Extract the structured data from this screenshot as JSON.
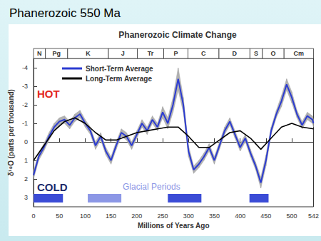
{
  "slide_title": "Phanerozoic 550 Ma",
  "chart_data": {
    "type": "line",
    "title": "Phanerozoic Climate Change",
    "x_label": "Millions of Years Ago",
    "y_label": "δ¹⁸O (parts per thousand)",
    "xlim": [
      0,
      542
    ],
    "xticks": [
      0,
      50,
      100,
      150,
      200,
      250,
      300,
      350,
      400,
      450,
      500,
      542
    ],
    "ylim": [
      3.5,
      -4.5
    ],
    "yticks": [
      -4,
      -3,
      -2,
      -1,
      0,
      1,
      2,
      3
    ],
    "grid": false,
    "legend": "upper left",
    "series": [
      {
        "name": "Short-Term Average",
        "color": "#2b3bd1",
        "x": [
          0,
          10,
          20,
          30,
          40,
          50,
          60,
          70,
          80,
          90,
          100,
          110,
          120,
          130,
          140,
          150,
          160,
          170,
          180,
          190,
          200,
          210,
          220,
          230,
          240,
          250,
          260,
          270,
          280,
          290,
          300,
          310,
          320,
          330,
          340,
          350,
          360,
          370,
          380,
          390,
          400,
          410,
          420,
          430,
          440,
          450,
          460,
          470,
          480,
          490,
          500,
          510,
          520,
          530,
          540,
          542
        ],
        "values": [
          1.8,
          0.8,
          0.3,
          -0.3,
          -0.8,
          -1.1,
          -1.2,
          -0.9,
          -1.3,
          -1.5,
          -1.0,
          -0.6,
          0.2,
          -0.3,
          0.5,
          1.0,
          0.2,
          -0.5,
          -0.3,
          0.2,
          -0.4,
          -1.0,
          -0.6,
          -1.2,
          -0.8,
          -1.6,
          -1.0,
          -2.0,
          -3.4,
          -2.0,
          0.5,
          1.5,
          1.2,
          0.8,
          0.3,
          1.0,
          0.2,
          -0.6,
          -1.1,
          -0.4,
          0.3,
          -0.2,
          0.6,
          1.3,
          2.2,
          1.0,
          -0.6,
          -1.5,
          -2.2,
          -3.1,
          -2.4,
          -1.5,
          -0.9,
          -1.4,
          -1.2,
          -1.0
        ],
        "error": [
          0.2,
          0.2,
          0.2,
          0.2,
          0.2,
          0.2,
          0.2,
          0.2,
          0.2,
          0.2,
          0.2,
          0.2,
          0.2,
          0.2,
          0.2,
          0.2,
          0.2,
          0.2,
          0.2,
          0.2,
          0.2,
          0.2,
          0.2,
          0.2,
          0.2,
          0.3,
          0.3,
          0.4,
          0.6,
          0.4,
          0.3,
          0.2,
          0.2,
          0.2,
          0.2,
          0.2,
          0.2,
          0.2,
          0.2,
          0.2,
          0.2,
          0.2,
          0.2,
          0.2,
          0.3,
          0.3,
          0.2,
          0.2,
          0.3,
          0.3,
          0.3,
          0.2,
          0.2,
          0.2,
          0.2,
          0.2
        ]
      },
      {
        "name": "Long-Term Average",
        "color": "#000000",
        "x": [
          0,
          20,
          40,
          60,
          80,
          100,
          120,
          140,
          160,
          180,
          200,
          220,
          240,
          260,
          280,
          300,
          320,
          340,
          360,
          380,
          400,
          420,
          440,
          460,
          480,
          500,
          520,
          542
        ],
        "values": [
          1.0,
          0.2,
          -0.6,
          -1.1,
          -1.3,
          -1.0,
          -0.5,
          -0.1,
          -0.1,
          -0.3,
          -0.5,
          -0.6,
          -0.7,
          -0.8,
          -0.8,
          -0.3,
          0.3,
          0.3,
          -0.1,
          -0.5,
          -0.6,
          -0.2,
          0.4,
          -0.2,
          -0.8,
          -1.0,
          -0.8,
          -0.7
        ]
      }
    ],
    "periods": [
      {
        "label": "N",
        "start": 0,
        "end": 23
      },
      {
        "label": "Pg",
        "start": 23,
        "end": 66
      },
      {
        "label": "K",
        "start": 66,
        "end": 145
      },
      {
        "label": "J",
        "start": 145,
        "end": 201
      },
      {
        "label": "Tr",
        "start": 201,
        "end": 252
      },
      {
        "label": "P",
        "start": 252,
        "end": 299
      },
      {
        "label": "C",
        "start": 299,
        "end": 359
      },
      {
        "label": "D",
        "start": 359,
        "end": 419
      },
      {
        "label": "S",
        "start": 419,
        "end": 443
      },
      {
        "label": "O",
        "start": 443,
        "end": 485
      },
      {
        "label": "Cm",
        "start": 485,
        "end": 542
      }
    ],
    "glacial_periods": {
      "label": "Glacial Periods",
      "color": "#8c97e6",
      "spans": [
        {
          "start": 0,
          "end": 57,
          "color": "#3b4cd6"
        },
        {
          "start": 105,
          "end": 170,
          "color": "#8c97e6"
        },
        {
          "start": 260,
          "end": 325,
          "color": "#3b4cd6"
        },
        {
          "start": 418,
          "end": 455,
          "color": "#3b4cd6"
        }
      ]
    },
    "annotations": [
      {
        "text": "HOT",
        "color": "#e3261c"
      },
      {
        "text": "COLD",
        "color": "#1c2a6b"
      }
    ]
  }
}
